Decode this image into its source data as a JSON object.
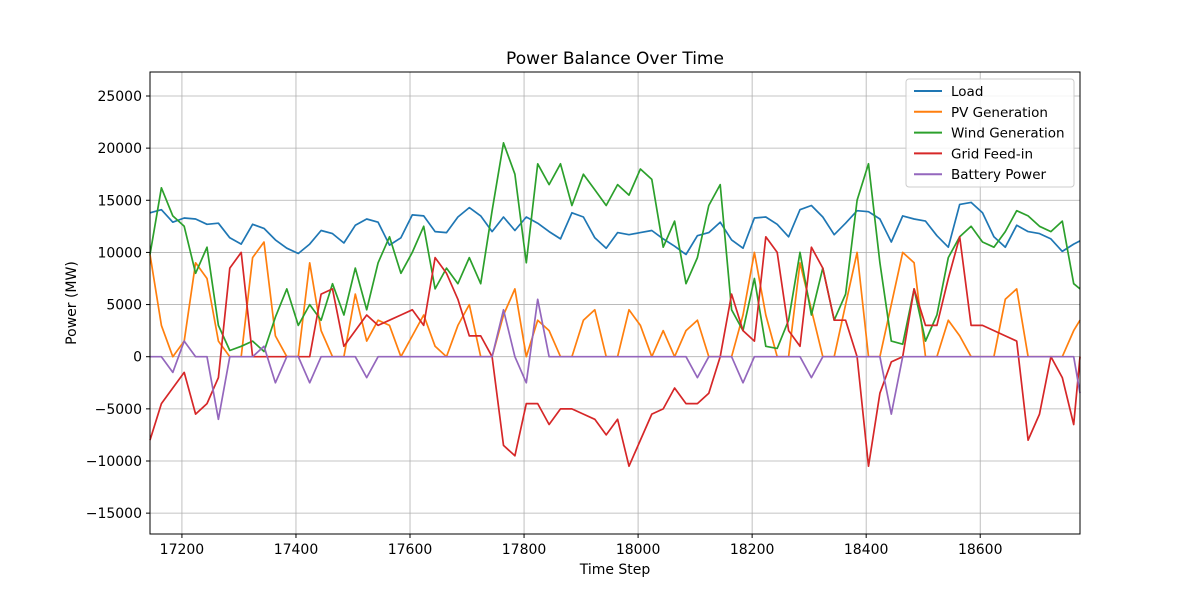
{
  "chart_data": {
    "type": "line",
    "title": "Power Balance Over Time",
    "xlabel": "Time Step",
    "ylabel": "Power (MW)",
    "xlim": [
      17144,
      18775
    ],
    "ylim": [
      -17000,
      27300
    ],
    "xticks": [
      17200,
      17400,
      17600,
      17800,
      18000,
      18200,
      18400,
      18600
    ],
    "yticks": [
      -15000,
      -10000,
      -5000,
      0,
      5000,
      10000,
      15000,
      20000,
      25000
    ],
    "grid": true,
    "legend_position": "top-right",
    "x": [
      17144,
      17164,
      17184,
      17204,
      17224,
      17244,
      17264,
      17284,
      17304,
      17324,
      17344,
      17364,
      17384,
      17404,
      17424,
      17444,
      17464,
      17484,
      17504,
      17524,
      17544,
      17564,
      17584,
      17604,
      17624,
      17644,
      17664,
      17684,
      17704,
      17724,
      17744,
      17764,
      17784,
      17804,
      17824,
      17844,
      17864,
      17884,
      17904,
      17924,
      17944,
      17964,
      17984,
      18004,
      18024,
      18044,
      18064,
      18084,
      18104,
      18124,
      18144,
      18164,
      18184,
      18204,
      18224,
      18244,
      18264,
      18284,
      18304,
      18324,
      18344,
      18364,
      18384,
      18404,
      18424,
      18444,
      18464,
      18484,
      18504,
      18524,
      18544,
      18564,
      18584,
      18604,
      18624,
      18644,
      18664,
      18684,
      18704,
      18724,
      18744,
      18764,
      18775
    ],
    "series": [
      {
        "name": "Load",
        "color": "#1f77b4",
        "values": [
          13800,
          14100,
          12900,
          13300,
          13200,
          12700,
          12800,
          11400,
          10800,
          12700,
          12300,
          11200,
          10400,
          9900,
          10800,
          12100,
          11800,
          10900,
          12600,
          13200,
          12900,
          10700,
          11400,
          13600,
          13500,
          12000,
          11900,
          13400,
          14300,
          13500,
          12000,
          13400,
          12100,
          13400,
          12800,
          12000,
          11300,
          13800,
          13400,
          11400,
          10400,
          11900,
          11700,
          11900,
          12100,
          11300,
          10600,
          9800,
          11600,
          11900,
          12900,
          11200,
          10400,
          13300,
          13400,
          12700,
          11500,
          14100,
          14500,
          13400,
          11700,
          12800,
          14000,
          13900,
          13200,
          11000,
          13500,
          13200,
          13000,
          11600,
          10500,
          14600,
          14800,
          13800,
          11500,
          10500,
          12600,
          12000,
          11800,
          11300,
          10100,
          10800,
          11100
        ]
      },
      {
        "name": "PV Generation",
        "color": "#ff7f0e",
        "values": [
          9800,
          3000,
          0,
          1500,
          9000,
          7500,
          1500,
          0,
          0,
          9500,
          11000,
          2000,
          0,
          0,
          9000,
          2500,
          0,
          0,
          6000,
          1500,
          3500,
          3000,
          0,
          2000,
          4000,
          1000,
          0,
          3000,
          5000,
          0,
          0,
          4000,
          6500,
          0,
          3500,
          2500,
          0,
          0,
          3500,
          4500,
          0,
          0,
          4500,
          3000,
          0,
          2500,
          0,
          2500,
          3500,
          0,
          0,
          0,
          4000,
          10000,
          4000,
          0,
          0,
          9000,
          4500,
          0,
          0,
          5000,
          10000,
          0,
          0,
          5000,
          10000,
          9000,
          0,
          0,
          3500,
          2000,
          0,
          0,
          0,
          5500,
          6500,
          0,
          0,
          0,
          0,
          2500,
          3500
        ]
      },
      {
        "name": "Wind Generation",
        "color": "#2ca02c",
        "values": [
          9800,
          16200,
          13500,
          12500,
          8000,
          10500,
          3000,
          600,
          1000,
          1500,
          500,
          3800,
          6500,
          3000,
          5000,
          3500,
          7000,
          4000,
          8500,
          4500,
          9000,
          11500,
          8000,
          10000,
          12500,
          6500,
          8500,
          7000,
          9500,
          7000,
          14000,
          20500,
          17500,
          9000,
          18500,
          16500,
          18500,
          14500,
          17500,
          16000,
          14500,
          16500,
          15500,
          18000,
          17000,
          10500,
          13000,
          7000,
          9500,
          14500,
          16500,
          4500,
          2500,
          7500,
          1000,
          800,
          3500,
          10000,
          4000,
          8500,
          3500,
          6000,
          15000,
          18500,
          9000,
          1500,
          1200,
          6500,
          1500,
          4000,
          9500,
          11500,
          12500,
          11000,
          10500,
          12000,
          14000,
          13500,
          12500,
          12000,
          13000,
          7000,
          6500
        ]
      },
      {
        "name": "Grid Feed-in",
        "color": "#d62728",
        "values": [
          -8000,
          -4500,
          -3000,
          -1500,
          -5500,
          -4500,
          -2000,
          8500,
          10000,
          0,
          0,
          0,
          0,
          0,
          0,
          6000,
          6500,
          1000,
          2500,
          4000,
          3000,
          3500,
          4000,
          4500,
          3000,
          9500,
          8000,
          5500,
          2000,
          2000,
          0,
          -8500,
          -9500,
          -4500,
          -4500,
          -6500,
          -5000,
          -5000,
          -5500,
          -6000,
          -7500,
          -6000,
          -10500,
          -8000,
          -5500,
          -5000,
          -3000,
          -4500,
          -4500,
          -3500,
          0,
          6000,
          2500,
          1500,
          11500,
          10000,
          2500,
          1000,
          10500,
          8500,
          3500,
          3500,
          0,
          -10500,
          -3500,
          -500,
          0,
          6500,
          3000,
          3000,
          7500,
          11500,
          3000,
          3000,
          2500,
          2000,
          1500,
          -8000,
          -5500,
          0,
          -2000,
          -6500,
          0
        ]
      },
      {
        "name": "Battery Power",
        "color": "#9467bd",
        "values": [
          0,
          0,
          -1500,
          1500,
          0,
          0,
          -6000,
          0,
          0,
          0,
          1000,
          -2500,
          0,
          0,
          -2500,
          0,
          0,
          0,
          0,
          -2000,
          0,
          0,
          0,
          0,
          0,
          0,
          0,
          0,
          0,
          0,
          0,
          4500,
          0,
          -2500,
          5500,
          0,
          0,
          0,
          0,
          0,
          0,
          0,
          0,
          0,
          0,
          0,
          0,
          0,
          -2000,
          0,
          0,
          0,
          -2500,
          0,
          0,
          0,
          0,
          0,
          -2000,
          0,
          0,
          0,
          0,
          0,
          0,
          -5500,
          0,
          0,
          0,
          0,
          0,
          0,
          0,
          0,
          0,
          0,
          0,
          0,
          0,
          0,
          0,
          0,
          -3500
        ]
      }
    ]
  }
}
